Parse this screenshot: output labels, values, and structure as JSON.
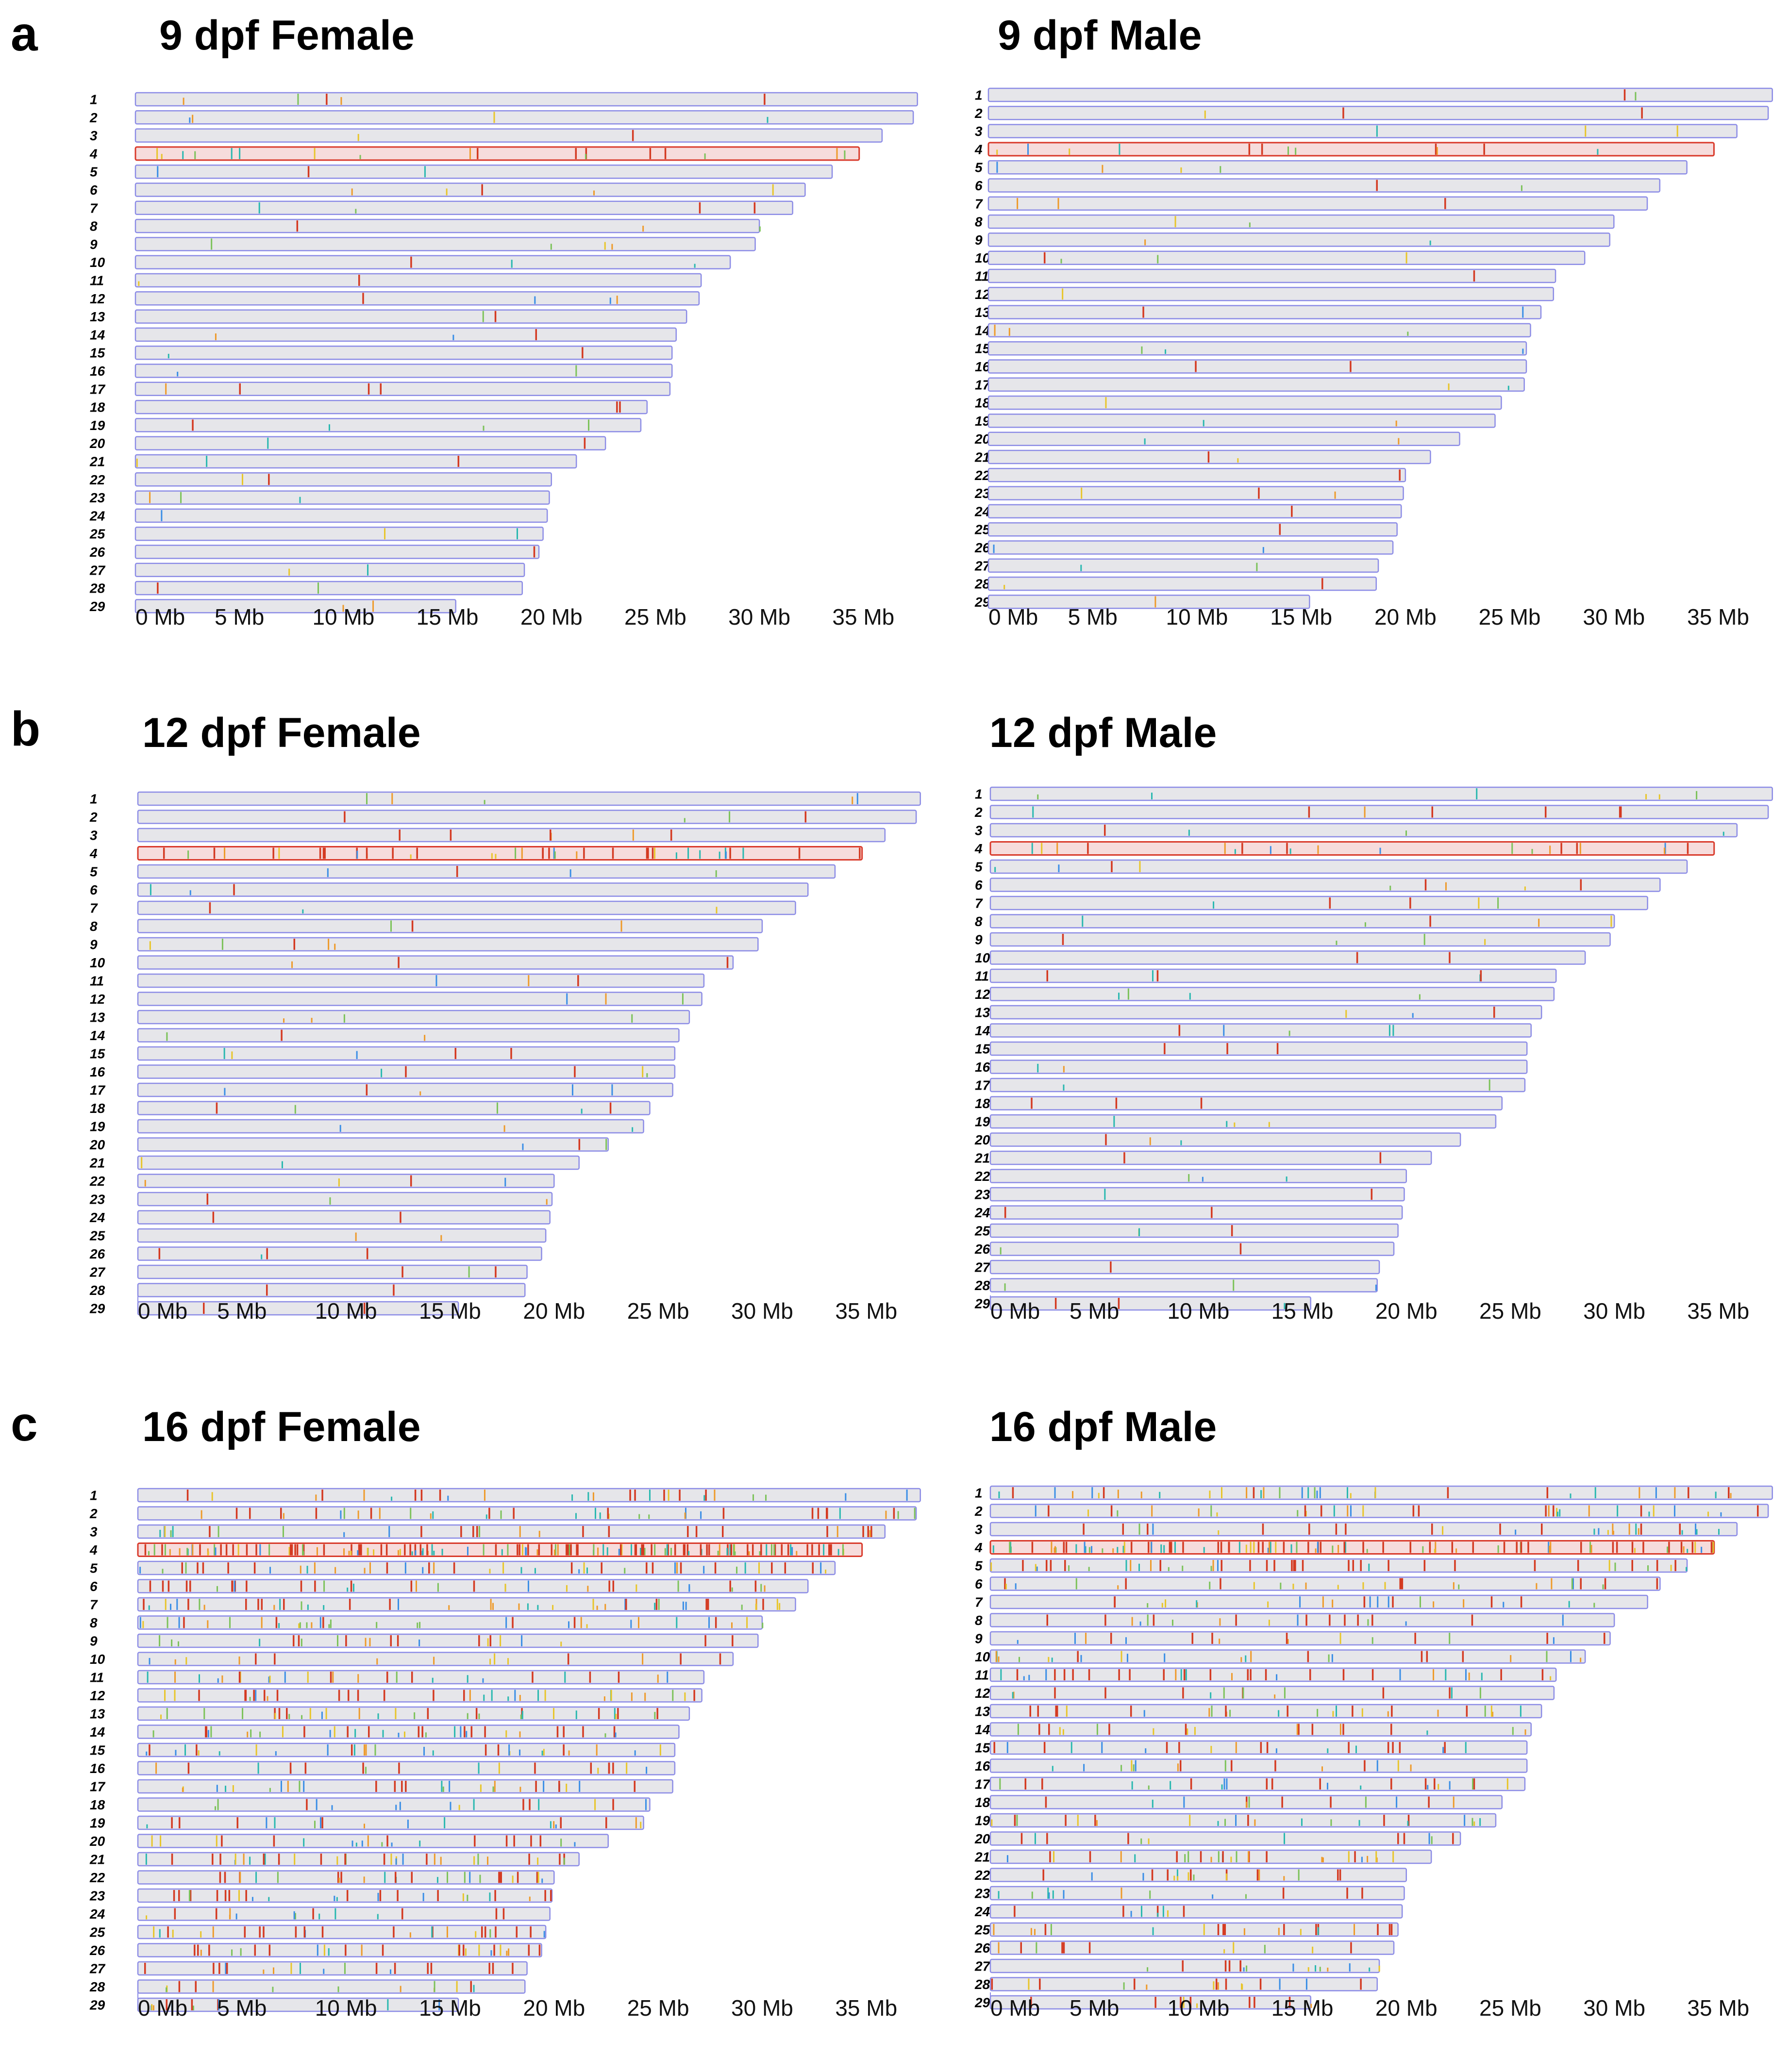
{
  "figure": {
    "panels": [
      {
        "letter": "a",
        "left_title": "9 dpf Female",
        "right_title": "9 dpf Male"
      },
      {
        "letter": "b",
        "left_title": "12 dpf Female",
        "right_title": "12 dpf Male"
      },
      {
        "letter": "c",
        "left_title": "16 dpf Female",
        "right_title": "16 dpf Male"
      }
    ]
  },
  "colors": {
    "chromosome_fill": "#e6e6ea",
    "chromosome_border": "#8c8ce6",
    "highlight_fill": "#f6dcdc",
    "highlight_border": "#d93a2b",
    "marker_red": "#d43a22",
    "marker_orange": "#ee9a2a",
    "marker_yellow": "#e8c52a",
    "marker_green": "#7cc25a",
    "marker_blue": "#3a8ee6",
    "marker_teal": "#2ab8b0"
  },
  "chart_data": {
    "type": "karyogram",
    "x_unit": "Mb",
    "xlim": [
      0,
      37.7
    ],
    "xticks": [
      0,
      5,
      10,
      15,
      20,
      25,
      30,
      35
    ],
    "xtick_labels": [
      "0 Mb",
      "5 Mb",
      "10 Mb",
      "15 Mb",
      "20 Mb",
      "25 Mb",
      "30 Mb",
      "35 Mb"
    ],
    "chromosome_labels": [
      "1",
      "2",
      "3",
      "4",
      "5",
      "6",
      "7",
      "8",
      "9",
      "10",
      "11",
      "12",
      "13",
      "14",
      "15",
      "16",
      "17",
      "18",
      "19",
      "20",
      "21",
      "22",
      "23",
      "24",
      "25",
      "26",
      "27",
      "28",
      "29"
    ],
    "chromosome_lengths_mb": [
      37.6,
      37.4,
      35.9,
      34.8,
      33.5,
      32.2,
      31.6,
      30.0,
      29.8,
      28.6,
      27.2,
      27.1,
      26.5,
      26.0,
      25.8,
      25.8,
      25.7,
      24.6,
      24.3,
      22.6,
      21.2,
      20.0,
      19.9,
      19.8,
      19.6,
      19.4,
      18.7,
      18.6,
      15.4
    ],
    "highlighted_chromosome": "4",
    "panels": [
      {
        "title": "9 dpf Female",
        "panel": "a",
        "density": 0.1,
        "chr4_density": 0.6
      },
      {
        "title": "9 dpf Male",
        "panel": "a",
        "density": 0.1,
        "chr4_density": 0.6
      },
      {
        "title": "12 dpf Female",
        "panel": "b",
        "density": 0.14,
        "chr4_density": 1.0
      },
      {
        "title": "12 dpf Male",
        "panel": "b",
        "density": 0.12,
        "chr4_density": 0.7
      },
      {
        "title": "16 dpf Female",
        "panel": "c",
        "density": 1.0,
        "chr4_density": 4.0
      },
      {
        "title": "16 dpf Male",
        "panel": "c",
        "density": 0.9,
        "chr4_density": 3.5
      }
    ]
  }
}
